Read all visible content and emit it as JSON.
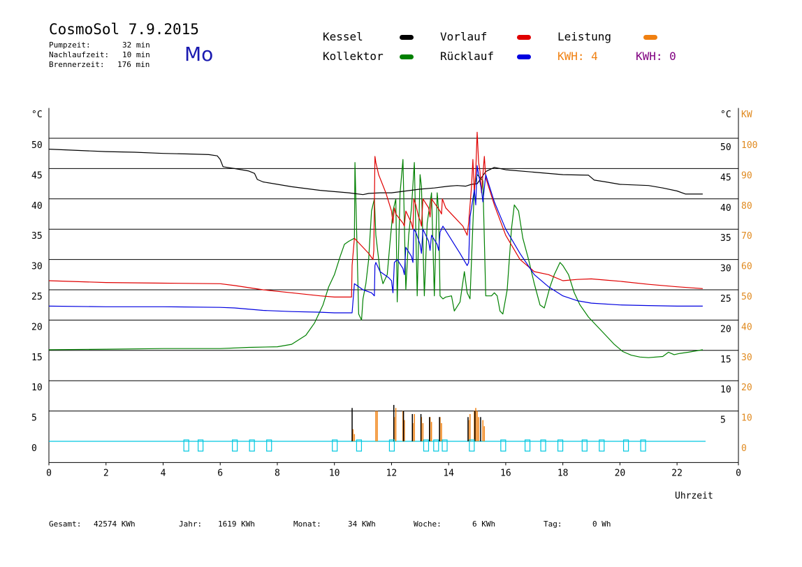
{
  "header": {
    "title": "CosmoSol 7.9.2015",
    "day": "Mo",
    "info": [
      {
        "label": "Pumpzeit:",
        "value": "32 min"
      },
      {
        "label": "Nachlaufzeit:",
        "value": "10 min"
      },
      {
        "label": "Brennerzeit:",
        "value": "176 min"
      }
    ]
  },
  "legend": {
    "kessel": {
      "label": "Kessel",
      "color": "#000000"
    },
    "kollektor": {
      "label": "Kollektor",
      "color": "#008000"
    },
    "vorlauf": {
      "label": "Vorlauf",
      "color": "#e00000"
    },
    "ruecklauf": {
      "label": "Rücklauf",
      "color": "#0000e0"
    },
    "leistung": {
      "label": "Leistung",
      "color": "#f08010"
    },
    "kwh_orange": {
      "label": "KWH: 4",
      "color": "#f08010"
    },
    "kwh_purple": {
      "label": "KWH: 0",
      "color": "#800080"
    }
  },
  "footer": {
    "gesamt": {
      "label": "Gesamt:",
      "value": "42574 KWh"
    },
    "jahr": {
      "label": "Jahr:",
      "value": "1619 KWh"
    },
    "monat": {
      "label": "Monat:",
      "value": "34 KWh"
    },
    "woche": {
      "label": "Woche:",
      "value": "6 KWh"
    },
    "tag": {
      "label": "Tag:",
      "value": "0 Wh"
    }
  },
  "chart_data": {
    "type": "line",
    "xlabel": "Uhrzeit",
    "ylabel_left": "°C",
    "ylabel_right": "°C",
    "ylabel_right2": "KW",
    "xlim": [
      0,
      24
    ],
    "ylim": [
      -3.5,
      55
    ],
    "grid": true,
    "x_ticks": [
      "0",
      "2",
      "4",
      "6",
      "8",
      "10",
      "12",
      "14",
      "16",
      "18",
      "20",
      "22",
      "0"
    ],
    "y_ticks_left": [
      "0",
      "5",
      "10",
      "15",
      "20",
      "25",
      "30",
      "35",
      "40",
      "45",
      "50"
    ],
    "y_ticks_right": [
      "5",
      "10",
      "15",
      "20",
      "25",
      "30",
      "35",
      "40",
      "45",
      "50"
    ],
    "y_ticks_kw": [
      "0",
      "10",
      "20",
      "30",
      "40",
      "50",
      "60",
      "70",
      "80",
      "90",
      "100"
    ],
    "series": [
      {
        "name": "Kessel",
        "color": "#000000",
        "x": [
          0,
          1,
          2,
          3,
          4,
          5,
          5.6,
          5.9,
          6.0,
          6.1,
          6.5,
          7.0,
          7.2,
          7.3,
          7.5,
          8.5,
          9.5,
          10.5,
          11.0,
          11.2,
          11.6,
          12.0,
          12.5,
          13.0,
          13.5,
          14.0,
          14.3,
          14.6,
          14.8,
          15.0,
          15.3,
          15.6,
          16.0,
          17.0,
          18.0,
          18.9,
          19.1,
          19.5,
          20.0,
          21.0,
          21.5,
          22.0,
          22.3,
          22.9
        ],
        "y": [
          48.2,
          48.0,
          47.8,
          47.7,
          47.5,
          47.4,
          47.3,
          47.1,
          46.5,
          45.3,
          45.0,
          44.6,
          44.2,
          43.2,
          42.8,
          42.0,
          41.4,
          41.0,
          40.7,
          40.9,
          41.0,
          41.0,
          41.3,
          41.6,
          41.8,
          42.1,
          42.2,
          42.1,
          42.4,
          42.5,
          44.5,
          45.2,
          44.8,
          44.4,
          44.0,
          43.9,
          43.1,
          42.8,
          42.4,
          42.2,
          41.8,
          41.3,
          40.8,
          40.8
        ]
      },
      {
        "name": "Vorlauf",
        "color": "#e00000",
        "x": [
          0,
          2,
          4,
          6,
          6.5,
          7.5,
          8.5,
          9.5,
          10.0,
          10.6,
          10.62,
          10.7,
          10.9,
          11.2,
          11.35,
          11.38,
          11.42,
          11.45,
          11.55,
          11.8,
          12.0,
          12.05,
          12.1,
          12.15,
          12.4,
          12.45,
          12.5,
          12.7,
          12.75,
          12.78,
          12.85,
          12.95,
          13.0,
          13.05,
          13.1,
          13.3,
          13.35,
          13.4,
          13.7,
          13.75,
          13.78,
          13.9,
          14.2,
          14.5,
          14.65,
          14.7,
          14.8,
          14.85,
          14.9,
          14.95,
          15.0,
          15.05,
          15.1,
          15.15,
          15.25,
          15.3,
          15.6,
          16.0,
          16.5,
          17.0,
          17.5,
          18.0,
          18.5,
          19.0,
          19.5,
          20.0,
          21.0,
          22.0,
          22.9
        ],
        "y": [
          26.5,
          26.2,
          26.1,
          26.0,
          25.7,
          25.0,
          24.5,
          24.0,
          23.8,
          23.8,
          29.0,
          33.5,
          32.5,
          31.0,
          30.0,
          31.5,
          47.0,
          46.0,
          44.0,
          41.0,
          38.0,
          36.0,
          38.5,
          37.5,
          36.0,
          35.5,
          38.0,
          36.0,
          35.0,
          40.0,
          39.0,
          37.0,
          36.5,
          35.5,
          40.0,
          38.5,
          37.0,
          40.0,
          38.0,
          37.5,
          40.0,
          38.5,
          37.0,
          35.5,
          34.0,
          36.0,
          42.0,
          46.5,
          41.0,
          44.5,
          51.0,
          46.0,
          44.5,
          41.0,
          47.0,
          43.5,
          39.0,
          34.0,
          30.0,
          28.0,
          27.5,
          26.5,
          26.7,
          26.8,
          26.6,
          26.4,
          25.9,
          25.5,
          25.2
        ]
      },
      {
        "name": "Rücklauf",
        "color": "#0000e0",
        "x": [
          0,
          2,
          4,
          6,
          6.5,
          7.5,
          8.5,
          9.5,
          10.0,
          10.6,
          10.62,
          10.7,
          11.0,
          11.3,
          11.4,
          11.42,
          11.45,
          11.6,
          11.9,
          12.0,
          12.05,
          12.1,
          12.2,
          12.4,
          12.45,
          12.5,
          12.7,
          12.75,
          12.78,
          12.85,
          13.0,
          13.05,
          13.1,
          13.3,
          13.35,
          13.4,
          13.6,
          13.65,
          13.7,
          13.8,
          14.0,
          14.2,
          14.4,
          14.65,
          14.7,
          14.75,
          14.9,
          14.95,
          15.0,
          15.05,
          15.15,
          15.2,
          15.3,
          15.6,
          16.0,
          16.5,
          17.0,
          17.5,
          18.0,
          18.5,
          19.0,
          20.0,
          21.0,
          22.0,
          22.9
        ],
        "y": [
          22.3,
          22.2,
          22.2,
          22.1,
          22.0,
          21.6,
          21.4,
          21.3,
          21.2,
          21.2,
          21.2,
          26.0,
          25.0,
          24.5,
          24.0,
          29.0,
          29.5,
          28.0,
          27.0,
          26.5,
          24.5,
          29.5,
          30.0,
          28.5,
          27.5,
          32.0,
          30.5,
          29.5,
          35.0,
          34.5,
          32.5,
          31.0,
          35.0,
          33.0,
          31.5,
          34.0,
          32.5,
          31.5,
          34.5,
          35.5,
          34.0,
          32.5,
          31.0,
          29.0,
          29.5,
          37.0,
          41.5,
          39.0,
          45.5,
          44.0,
          41.5,
          39.5,
          44.0,
          39.5,
          35.0,
          31.0,
          27.5,
          25.5,
          24.0,
          23.2,
          22.8,
          22.5,
          22.4,
          22.3,
          22.3
        ]
      },
      {
        "name": "Kollektor",
        "color": "#008000",
        "x": [
          0,
          2,
          4,
          6,
          7,
          8,
          8.5,
          9.0,
          9.3,
          9.6,
          9.8,
          10.0,
          10.2,
          10.35,
          10.5,
          10.7,
          10.72,
          10.85,
          10.95,
          11.0,
          11.1,
          11.2,
          11.3,
          11.4,
          11.45,
          11.6,
          11.7,
          11.85,
          11.95,
          12.05,
          12.15,
          12.2,
          12.3,
          12.4,
          12.5,
          12.6,
          12.7,
          12.8,
          12.9,
          13.0,
          13.05,
          13.15,
          13.25,
          13.4,
          13.5,
          13.6,
          13.65,
          13.7,
          13.8,
          13.9,
          14.1,
          14.2,
          14.4,
          14.55,
          14.65,
          14.75,
          14.9,
          15.0,
          15.2,
          15.3,
          15.4,
          15.5,
          15.6,
          15.7,
          15.8,
          15.9,
          16.05,
          16.2,
          16.3,
          16.45,
          16.6,
          16.8,
          17.0,
          17.2,
          17.35,
          17.55,
          17.7,
          17.9,
          18.0,
          18.2,
          18.4,
          18.6,
          18.9,
          19.2,
          19.5,
          19.8,
          20.1,
          20.4,
          20.7,
          21.0,
          21.5,
          21.7,
          21.9,
          22.1,
          22.4,
          22.9
        ],
        "y": [
          15.1,
          15.2,
          15.3,
          15.3,
          15.5,
          15.6,
          16.0,
          17.5,
          19.5,
          22.5,
          25.5,
          27.5,
          30.5,
          32.5,
          33.0,
          33.5,
          46.0,
          21.0,
          20.0,
          23.5,
          26.0,
          30.0,
          38.0,
          40.0,
          34.0,
          28.0,
          26.0,
          27.5,
          33.0,
          38.0,
          40.0,
          23.0,
          41.0,
          46.5,
          25.0,
          34.0,
          38.5,
          46.0,
          24.0,
          44.0,
          42.0,
          24.0,
          36.0,
          41.0,
          24.0,
          41.0,
          38.0,
          24.0,
          23.5,
          23.8,
          24.0,
          21.5,
          23.0,
          28.0,
          24.5,
          23.5,
          42.0,
          44.0,
          43.0,
          24.0,
          24.0,
          24.0,
          24.5,
          24.0,
          21.5,
          21.0,
          25.0,
          35.0,
          39.0,
          38.0,
          33.5,
          30.0,
          26.0,
          22.5,
          22.0,
          25.5,
          27.5,
          29.5,
          29.0,
          27.5,
          24.5,
          22.5,
          20.5,
          19.0,
          17.5,
          16.0,
          14.8,
          14.2,
          13.9,
          13.8,
          14.0,
          14.7,
          14.3,
          14.5,
          14.7,
          15.1
        ]
      }
    ],
    "bars": [
      {
        "name": "Leistung",
        "color": "#f08010",
        "x": [
          10.65,
          10.7,
          11.45,
          11.5,
          12.1,
          12.15,
          12.4,
          12.45,
          12.75,
          12.8,
          13.05,
          13.1,
          13.35,
          13.4,
          13.7,
          13.75,
          14.7,
          14.75,
          14.9,
          14.95,
          15.0,
          15.05,
          15.2,
          15.25
        ],
        "y": [
          2.0,
          1.2,
          5.0,
          5.0,
          4.0,
          5.5,
          5.0,
          3.5,
          3.0,
          4.5,
          4.0,
          3.0,
          4.0,
          3.2,
          4.0,
          3.0,
          3.5,
          4.5,
          5.0,
          5.5,
          5.0,
          4.0,
          3.5,
          2.5
        ]
      },
      {
        "name": "Kessel",
        "color": "#000000",
        "x": [
          10.62,
          12.08,
          12.42,
          12.73,
          13.03,
          13.33,
          13.68,
          14.68,
          14.92,
          15.12
        ],
        "y": [
          5.5,
          6.0,
          5.0,
          4.5,
          4.5,
          4.0,
          4.0,
          4.0,
          5.0,
          4.0
        ]
      }
    ],
    "pump_markers": {
      "color": "#00c8e0",
      "x": [
        4.8,
        5.3,
        6.5,
        7.1,
        7.7,
        10.0,
        10.85,
        12.0,
        13.2,
        13.55,
        13.85,
        14.8,
        15.9,
        16.75,
        17.3,
        17.9,
        18.75,
        19.35,
        20.2,
        20.8
      ]
    }
  }
}
